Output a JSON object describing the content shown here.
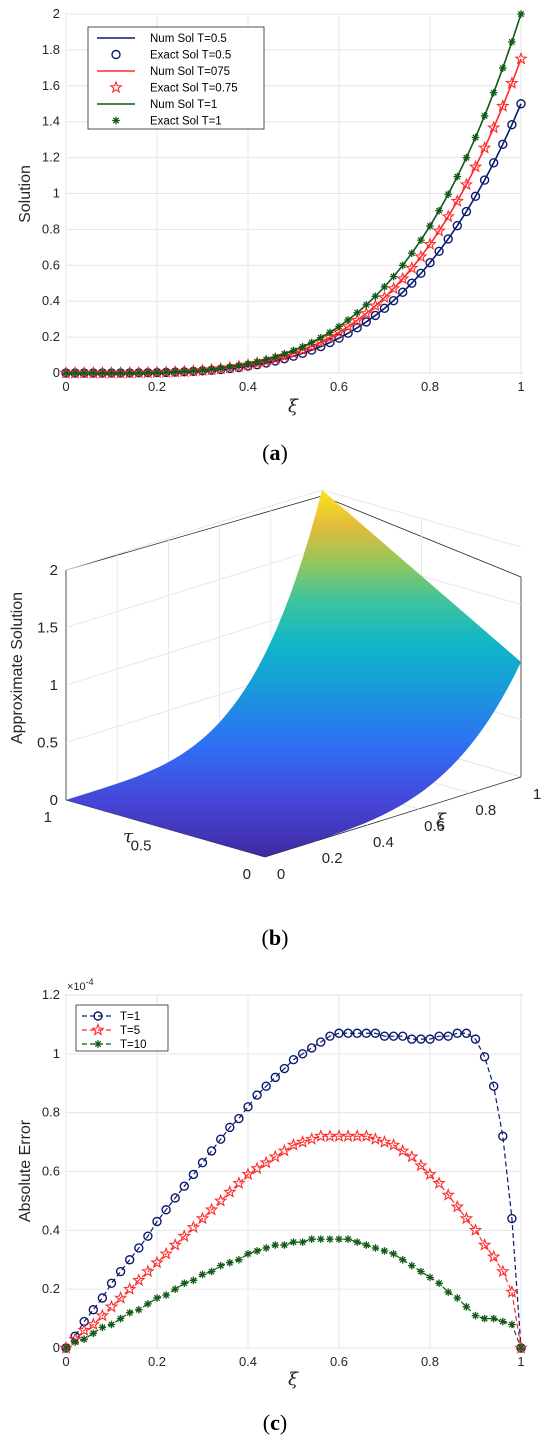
{
  "captions": [
    "(",
    "a",
    ")",
    "(",
    "b",
    ")",
    "(",
    "c",
    ")"
  ],
  "chart_data": [
    {
      "id": "a",
      "type": "line",
      "xlabel": "ξ",
      "ylabel": "Solution",
      "xlim": [
        0,
        1
      ],
      "ylim": [
        0,
        2
      ],
      "xticks": [
        "0",
        "0.2",
        "0.4",
        "0.6",
        "0.8",
        "1"
      ],
      "yticks": [
        "0",
        "0.2",
        "0.4",
        "0.6",
        "0.8",
        "1",
        "1.2",
        "1.4",
        "1.6",
        "1.8",
        "2"
      ],
      "grid": true,
      "legend_position": "top-left",
      "x_points": 51,
      "series": [
        {
          "name": "Num Sol T=0.5",
          "kind": "line",
          "color": "#0b1a6e",
          "scale": 1.5,
          "power": 4
        },
        {
          "name": "Exact Sol T=0.5",
          "kind": "marker",
          "marker": "circle",
          "color": "#0b1a6e",
          "scale": 1.5,
          "power": 4
        },
        {
          "name": "Num Sol T=075",
          "kind": "line",
          "color": "#ff2a2a",
          "scale": 1.75,
          "power": 4
        },
        {
          "name": "Exact Sol T=0.75",
          "kind": "marker",
          "marker": "star",
          "color": "#ff2a2a",
          "scale": 1.75,
          "power": 4
        },
        {
          "name": "Num Sol T=1",
          "kind": "line",
          "color": "#0f5a14",
          "scale": 2.0,
          "power": 4
        },
        {
          "name": "Exact Sol T=1",
          "kind": "marker",
          "marker": "asterisk",
          "color": "#0f5a14",
          "scale": 2.0,
          "power": 4
        }
      ]
    },
    {
      "id": "b",
      "type": "surface",
      "zlabel": "Approximate Solution",
      "xlabel": "ξ",
      "ylabel": "τ",
      "zticks": [
        "0",
        "0.5",
        "1",
        "1.5",
        "2"
      ],
      "xticks": [
        "0",
        "0.2",
        "0.4",
        "0.6",
        "0.8",
        "1"
      ],
      "yticks": [
        "0",
        "0.5",
        "1"
      ],
      "zlim": [
        0,
        2
      ],
      "colormap": "parula",
      "surface": "z = (1 + τ) ξ^4"
    },
    {
      "id": "c",
      "type": "line",
      "xlabel": "ξ",
      "ylabel": "Absolute Error",
      "exponent_label": "×10",
      "exponent_power": "-4",
      "xlim": [
        0,
        1
      ],
      "ylim": [
        0,
        1.2
      ],
      "xticks": [
        "0",
        "0.2",
        "0.4",
        "0.6",
        "0.8",
        "1"
      ],
      "yticks": [
        "0",
        "0.2",
        "0.4",
        "0.6",
        "0.8",
        "1",
        "1.2"
      ],
      "grid": true,
      "legend_position": "top-left",
      "x": [
        0,
        0.02,
        0.04,
        0.06,
        0.08,
        0.1,
        0.12,
        0.14,
        0.16,
        0.18,
        0.2,
        0.22,
        0.24,
        0.26,
        0.28,
        0.3,
        0.32,
        0.34,
        0.36,
        0.38,
        0.4,
        0.42,
        0.44,
        0.46,
        0.48,
        0.5,
        0.52,
        0.54,
        0.56,
        0.58,
        0.6,
        0.62,
        0.64,
        0.66,
        0.68,
        0.7,
        0.72,
        0.74,
        0.76,
        0.78,
        0.8,
        0.82,
        0.84,
        0.86,
        0.88,
        0.9,
        0.92,
        0.94,
        0.96,
        0.98,
        1.0
      ],
      "series": [
        {
          "name": "T=1",
          "marker": "circle",
          "color": "#0b1a6e",
          "dashed": true,
          "values": [
            0,
            0.04,
            0.09,
            0.13,
            0.17,
            0.22,
            0.26,
            0.3,
            0.34,
            0.38,
            0.43,
            0.47,
            0.51,
            0.55,
            0.59,
            0.63,
            0.67,
            0.71,
            0.75,
            0.78,
            0.82,
            0.86,
            0.89,
            0.92,
            0.95,
            0.98,
            1.0,
            1.02,
            1.04,
            1.06,
            1.07,
            1.07,
            1.07,
            1.07,
            1.07,
            1.06,
            1.06,
            1.06,
            1.05,
            1.05,
            1.05,
            1.06,
            1.06,
            1.07,
            1.07,
            1.05,
            0.99,
            0.89,
            0.72,
            0.44,
            0
          ]
        },
        {
          "name": "T=5",
          "marker": "star",
          "color": "#ff2a2a",
          "dashed": true,
          "values": [
            0,
            0.03,
            0.06,
            0.08,
            0.11,
            0.14,
            0.17,
            0.2,
            0.23,
            0.26,
            0.29,
            0.32,
            0.35,
            0.38,
            0.41,
            0.44,
            0.47,
            0.5,
            0.53,
            0.56,
            0.59,
            0.61,
            0.63,
            0.65,
            0.67,
            0.69,
            0.7,
            0.71,
            0.72,
            0.72,
            0.72,
            0.72,
            0.72,
            0.72,
            0.71,
            0.7,
            0.69,
            0.67,
            0.65,
            0.62,
            0.59,
            0.56,
            0.52,
            0.48,
            0.44,
            0.4,
            0.35,
            0.31,
            0.26,
            0.19,
            0
          ]
        },
        {
          "name": "T=10",
          "marker": "asterisk",
          "color": "#0f5a14",
          "dashed": true,
          "values": [
            0,
            0.02,
            0.03,
            0.05,
            0.07,
            0.08,
            0.1,
            0.12,
            0.13,
            0.15,
            0.17,
            0.18,
            0.2,
            0.22,
            0.23,
            0.25,
            0.26,
            0.28,
            0.29,
            0.3,
            0.32,
            0.33,
            0.34,
            0.35,
            0.35,
            0.36,
            0.36,
            0.37,
            0.37,
            0.37,
            0.37,
            0.37,
            0.36,
            0.35,
            0.34,
            0.33,
            0.32,
            0.3,
            0.28,
            0.26,
            0.24,
            0.22,
            0.19,
            0.17,
            0.14,
            0.11,
            0.1,
            0.1,
            0.09,
            0.08,
            0
          ]
        }
      ]
    }
  ]
}
